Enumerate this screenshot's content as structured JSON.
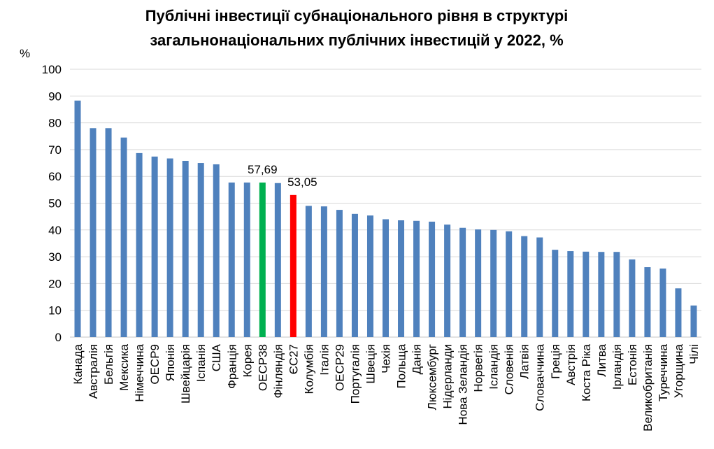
{
  "chart_data": {
    "type": "bar",
    "title": [
      "Публічні інвестиції субнаціонального рівня в структурі",
      "загальнонаціональних публічних  інвестицій у 2022, %"
    ],
    "ylabel": "%",
    "xlabel": "",
    "ylim": [
      0,
      100
    ],
    "yticks": [
      0,
      10,
      20,
      30,
      40,
      50,
      60,
      70,
      80,
      90,
      100
    ],
    "grid": true,
    "legend": "none",
    "colors": {
      "default": "#4F81BD",
      "oecd38": "#00B050",
      "eu27": "#FF0000",
      "grid": "#D9D9D9"
    },
    "categories": [
      "Канада",
      "Австралія",
      "Бельгія",
      "Мексика",
      "Німеччина",
      "OECP9",
      "Японія",
      "Швейцарія",
      "Іспанія",
      "США",
      "Франція",
      "Корея",
      "OECP38",
      "Фінляндія",
      "ЄС27",
      "Колумбія",
      "Італія",
      "OECP29",
      "Португалія",
      "Швеція",
      "Чехія",
      "Польща",
      "Данія",
      "Люксембург",
      "Нідерланди",
      "Нова Зеландія",
      "Норвегія",
      "Ісландія",
      "Словенія",
      "Латвія",
      "Словаччина",
      "Греція",
      "Австрія",
      "Коста Ріка",
      "Литва",
      "Ірландія",
      "Естонія",
      "Великобританія",
      "Туреччина",
      "Угорщина",
      "Чілі"
    ],
    "values": [
      88.3,
      78.0,
      78.0,
      74.5,
      68.7,
      67.4,
      66.7,
      65.8,
      65.0,
      64.5,
      57.7,
      57.7,
      57.69,
      57.5,
      53.05,
      49.0,
      48.8,
      47.5,
      46.0,
      45.4,
      44.0,
      43.6,
      43.4,
      43.1,
      42.0,
      40.8,
      40.2,
      40.0,
      39.5,
      37.7,
      37.2,
      32.6,
      32.1,
      31.9,
      31.8,
      31.8,
      29.0,
      26.1,
      25.6,
      18.2,
      11.8
    ],
    "highlights": {
      "OECP38": "oecd38",
      "ЄС27": "eu27"
    },
    "data_labels": [
      {
        "category": "OECP38",
        "text": "57,69"
      },
      {
        "category": "ЄС27",
        "text": "53,05"
      }
    ]
  }
}
